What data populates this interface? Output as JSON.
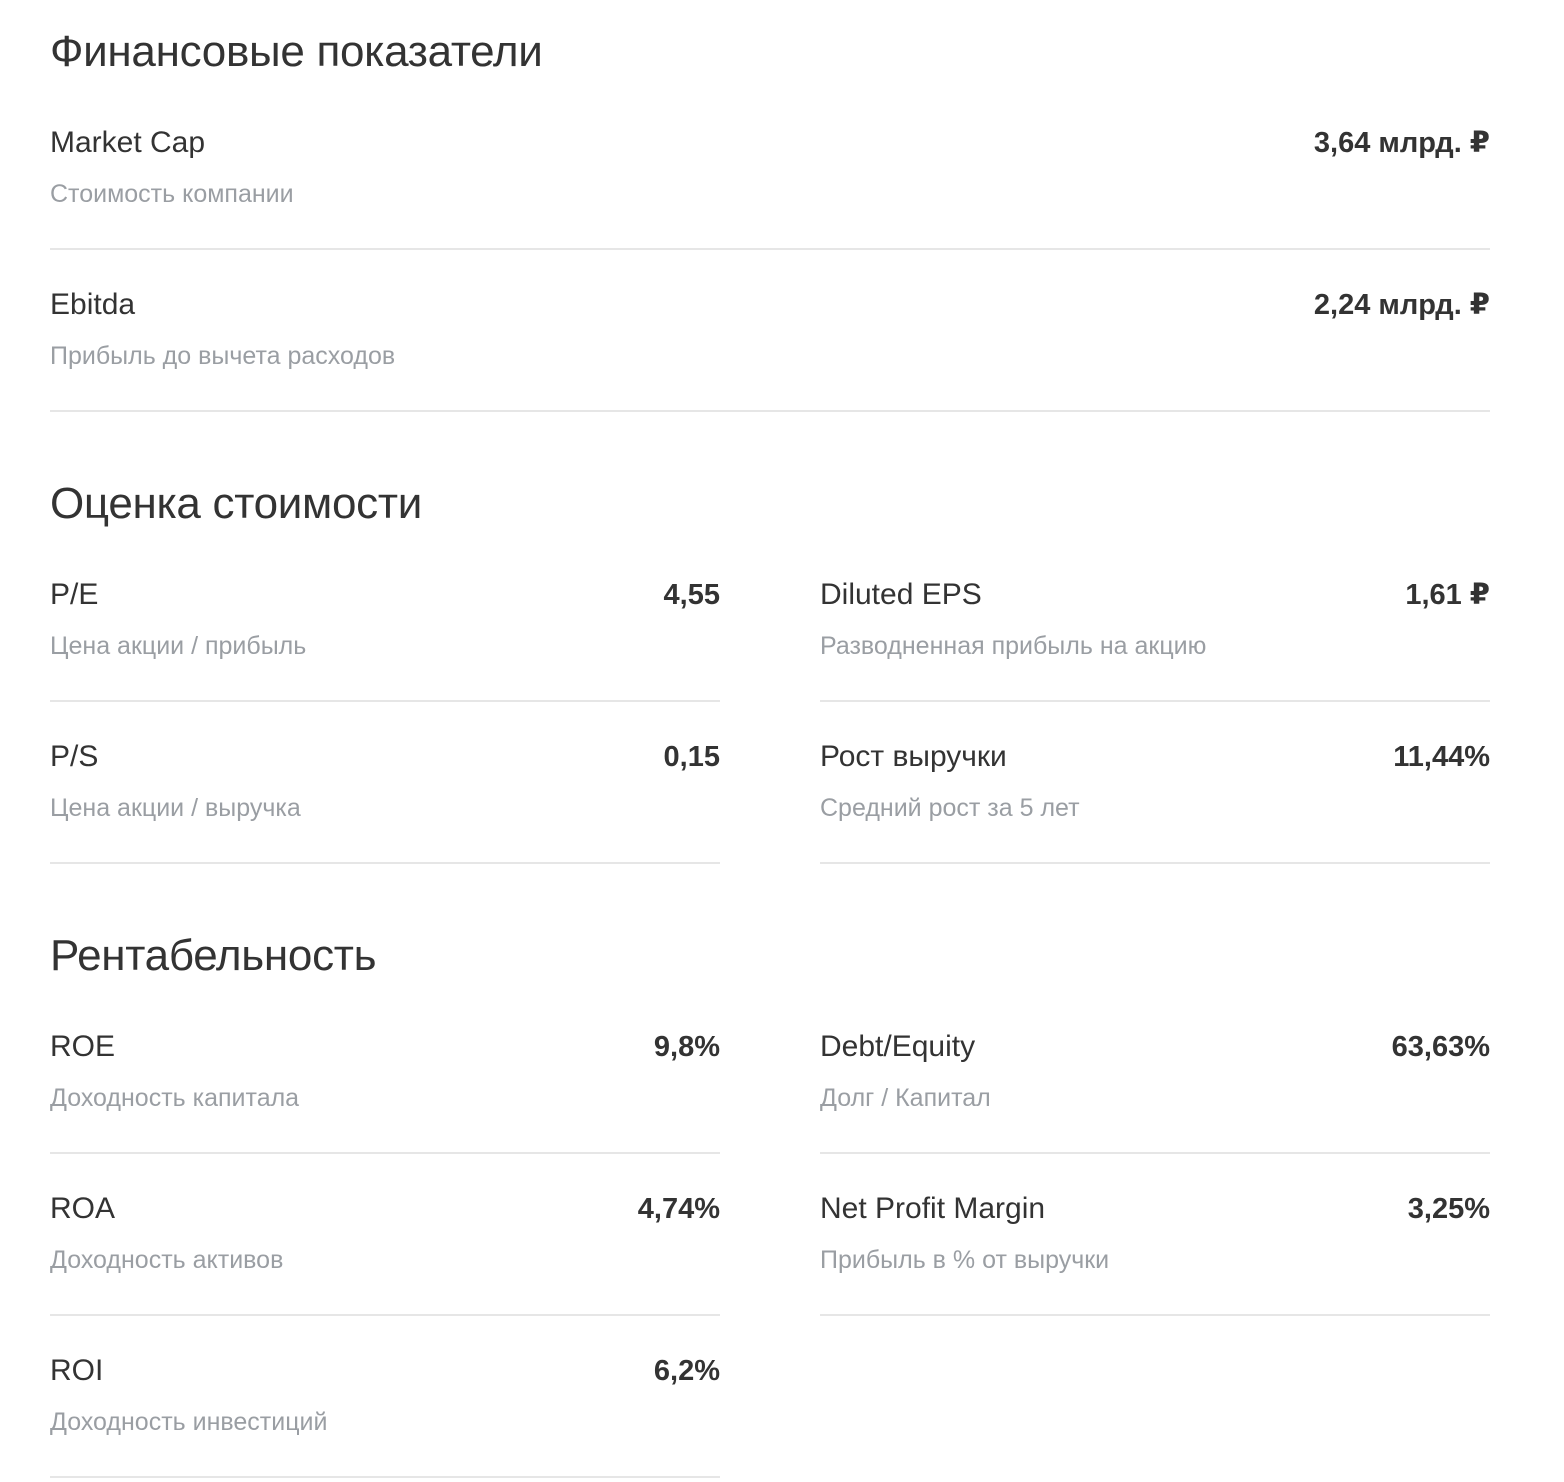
{
  "sections": {
    "financial": {
      "title": "Финансовые показатели",
      "items": [
        {
          "label": "Market Cap",
          "value": "3,64 млрд. ₽",
          "description": "Стоимость компании"
        },
        {
          "label": "Ebitda",
          "value": "2,24 млрд. ₽",
          "description": "Прибыль до вычета расходов"
        }
      ]
    },
    "valuation": {
      "title": "Оценка стоимости",
      "items": [
        {
          "label": "P/E",
          "value": "4,55",
          "description": "Цена акции / прибыль"
        },
        {
          "label": "Diluted EPS",
          "value": "1,61 ₽",
          "description": "Разводненная прибыль на акцию"
        },
        {
          "label": "P/S",
          "value": "0,15",
          "description": "Цена акции / выручка"
        },
        {
          "label": "Рост выручки",
          "value": "11,44%",
          "description": "Средний рост за 5 лет"
        }
      ]
    },
    "profitability": {
      "title": "Рентабельность",
      "items": [
        {
          "label": "ROE",
          "value": "9,8%",
          "description": "Доходность капитала"
        },
        {
          "label": "Debt/Equity",
          "value": "63,63%",
          "description": "Долг / Капитал"
        },
        {
          "label": "ROA",
          "value": "4,74%",
          "description": "Доходность активов"
        },
        {
          "label": "Net Profit Margin",
          "value": "3,25%",
          "description": "Прибыль в % от выручки"
        },
        {
          "label": "ROI",
          "value": "6,2%",
          "description": "Доходность инвестиций"
        }
      ]
    }
  }
}
